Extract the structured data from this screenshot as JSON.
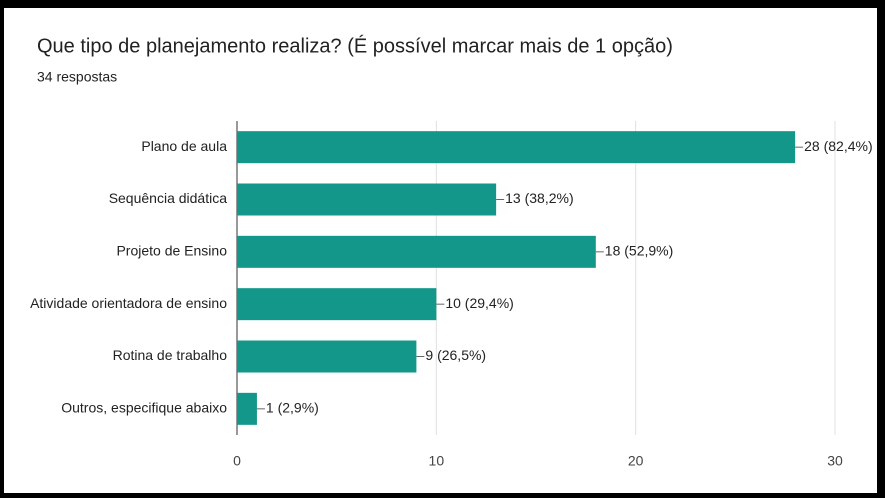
{
  "chart_data": {
    "type": "bar",
    "orientation": "horizontal",
    "title": "Que tipo de planejamento realiza? (É possível marcar mais de 1 opção)",
    "subtitle": "34 respostas",
    "categories": [
      "Plano de aula",
      "Sequência didática",
      "Projeto de Ensino",
      "Atividade orientadora de ensino",
      "Rotina de trabalho",
      "Outros, especifique abaixo"
    ],
    "values": [
      28,
      13,
      18,
      10,
      9,
      1
    ],
    "value_labels": [
      "28 (82,4%)",
      "13 (38,2%)",
      "18 (52,9%)",
      "10 (29,4%)",
      "9 (26,5%)",
      "1 (2,9%)"
    ],
    "color": "#12978a",
    "xlim": [
      0,
      30
    ],
    "xticks": [
      0,
      10,
      20,
      30
    ],
    "grid": true
  }
}
